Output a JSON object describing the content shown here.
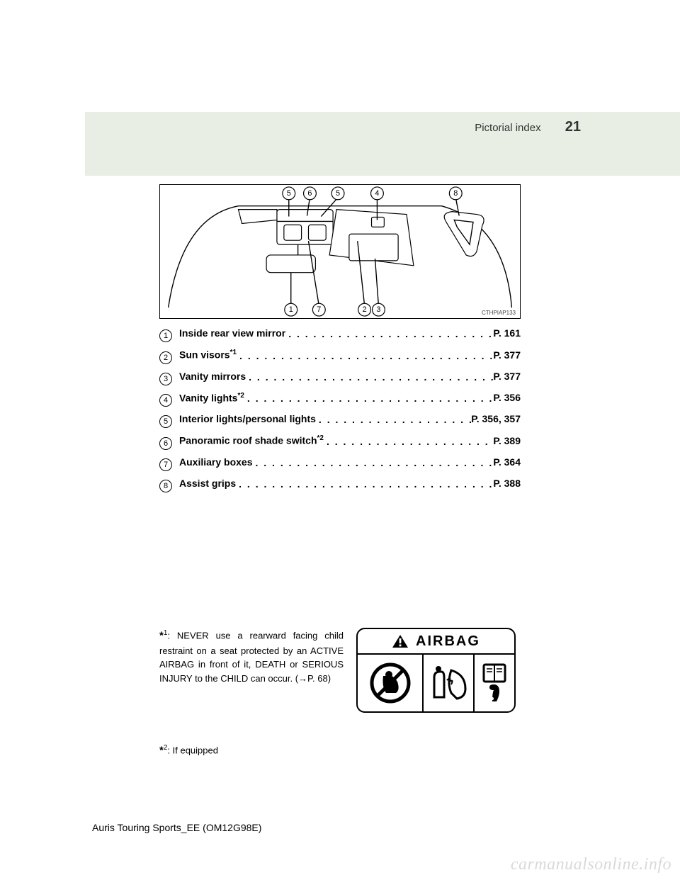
{
  "header": {
    "section": "Pictorial index",
    "page_number": "21"
  },
  "diagram": {
    "code": "CTHPIAP133",
    "top_callouts": [
      5,
      6,
      5,
      4,
      8
    ],
    "bottom_callouts": [
      1,
      7,
      2,
      3
    ]
  },
  "index_items": [
    {
      "num": "1",
      "label": "Inside rear view mirror",
      "sup": "",
      "page": "P. 161"
    },
    {
      "num": "2",
      "label": "Sun visors",
      "sup": "*1",
      "page": "P. 377"
    },
    {
      "num": "3",
      "label": "Vanity mirrors",
      "sup": "",
      "page": "P. 377"
    },
    {
      "num": "4",
      "label": "Vanity lights",
      "sup": "*2",
      "page": "P. 356"
    },
    {
      "num": "5",
      "label": "Interior lights/personal lights",
      "sup": "",
      "page": "P. 356, 357"
    },
    {
      "num": "6",
      "label": "Panoramic roof shade switch",
      "sup": "*2",
      "page": "P. 389"
    },
    {
      "num": "7",
      "label": "Auxiliary boxes",
      "sup": "",
      "page": "P. 364"
    },
    {
      "num": "8",
      "label": "Assist grips",
      "sup": "",
      "page": "P. 388"
    }
  ],
  "footnote1": {
    "marker": "*",
    "sup": "1",
    "text": ": NEVER use a rearward facing child restraint on a seat protected by an ACTIVE AIRBAG in front of it, DEATH or SERIOUS INJURY to the CHILD can occur. (→P. 68)"
  },
  "airbag_label": "AIRBAG",
  "footnote2": {
    "marker": "*",
    "sup": "2",
    "text": ": If equipped"
  },
  "footer": "Auris Touring Sports_EE (OM12G98E)",
  "watermark": "carmanualsonline.info",
  "colors": {
    "header_band": "#e8eee4",
    "text": "#000000",
    "watermark": "#d9d9d9"
  }
}
